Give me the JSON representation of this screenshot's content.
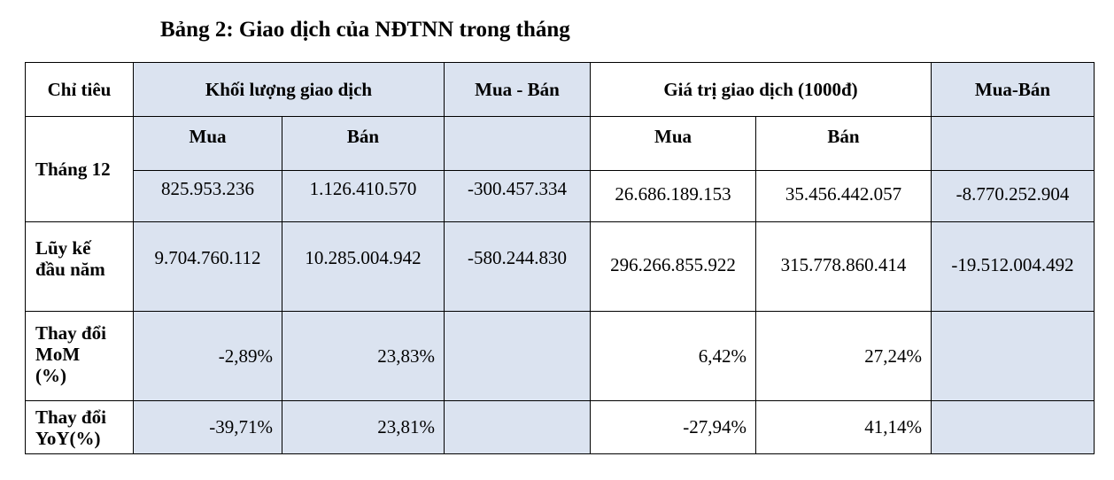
{
  "title": "Bảng 2: Giao dịch của NĐTNN trong tháng",
  "headers": {
    "chi_tieu": "Chỉ tiêu",
    "khoi_luong": "Khối lượng giao dịch",
    "mua_ban_1": "Mua - Bán",
    "gia_tri": "Giá trị giao dịch (1000đ)",
    "mua_ban_2": "Mua-Bán",
    "mua": "Mua",
    "ban": "Bán"
  },
  "rows": {
    "thang12": {
      "label": "Tháng 12",
      "kl_mua": "825.953.236",
      "kl_ban": "1.126.410.570",
      "kl_mua_ban": "-300.457.334",
      "gt_mua": "26.686.189.153",
      "gt_ban": "35.456.442.057",
      "gt_mua_ban": "-8.770.252.904"
    },
    "luyke": {
      "label_line1": "Lũy kế",
      "label_line2": "đầu năm",
      "kl_mua": "9.704.760.112",
      "kl_ban": "10.285.004.942",
      "kl_mua_ban": "-580.244.830",
      "gt_mua": "296.266.855.922",
      "gt_ban": "315.778.860.414",
      "gt_mua_ban": "-19.512.004.492"
    },
    "mom": {
      "label_line1": "Thay đổi",
      "label_line2": "MoM",
      "label_line3": "(%)",
      "kl_mua": "-2,89%",
      "kl_ban": "23,83%",
      "gt_mua": "6,42%",
      "gt_ban": "27,24%"
    },
    "yoy": {
      "label_line1": "Thay đổi",
      "label_line2": "YoY(%)",
      "kl_mua": "-39,71%",
      "kl_ban": "23,81%",
      "gt_mua": "-27,94%",
      "gt_ban": "41,14%"
    }
  },
  "colors": {
    "shade": "#dbe3f0",
    "border": "#000000"
  }
}
